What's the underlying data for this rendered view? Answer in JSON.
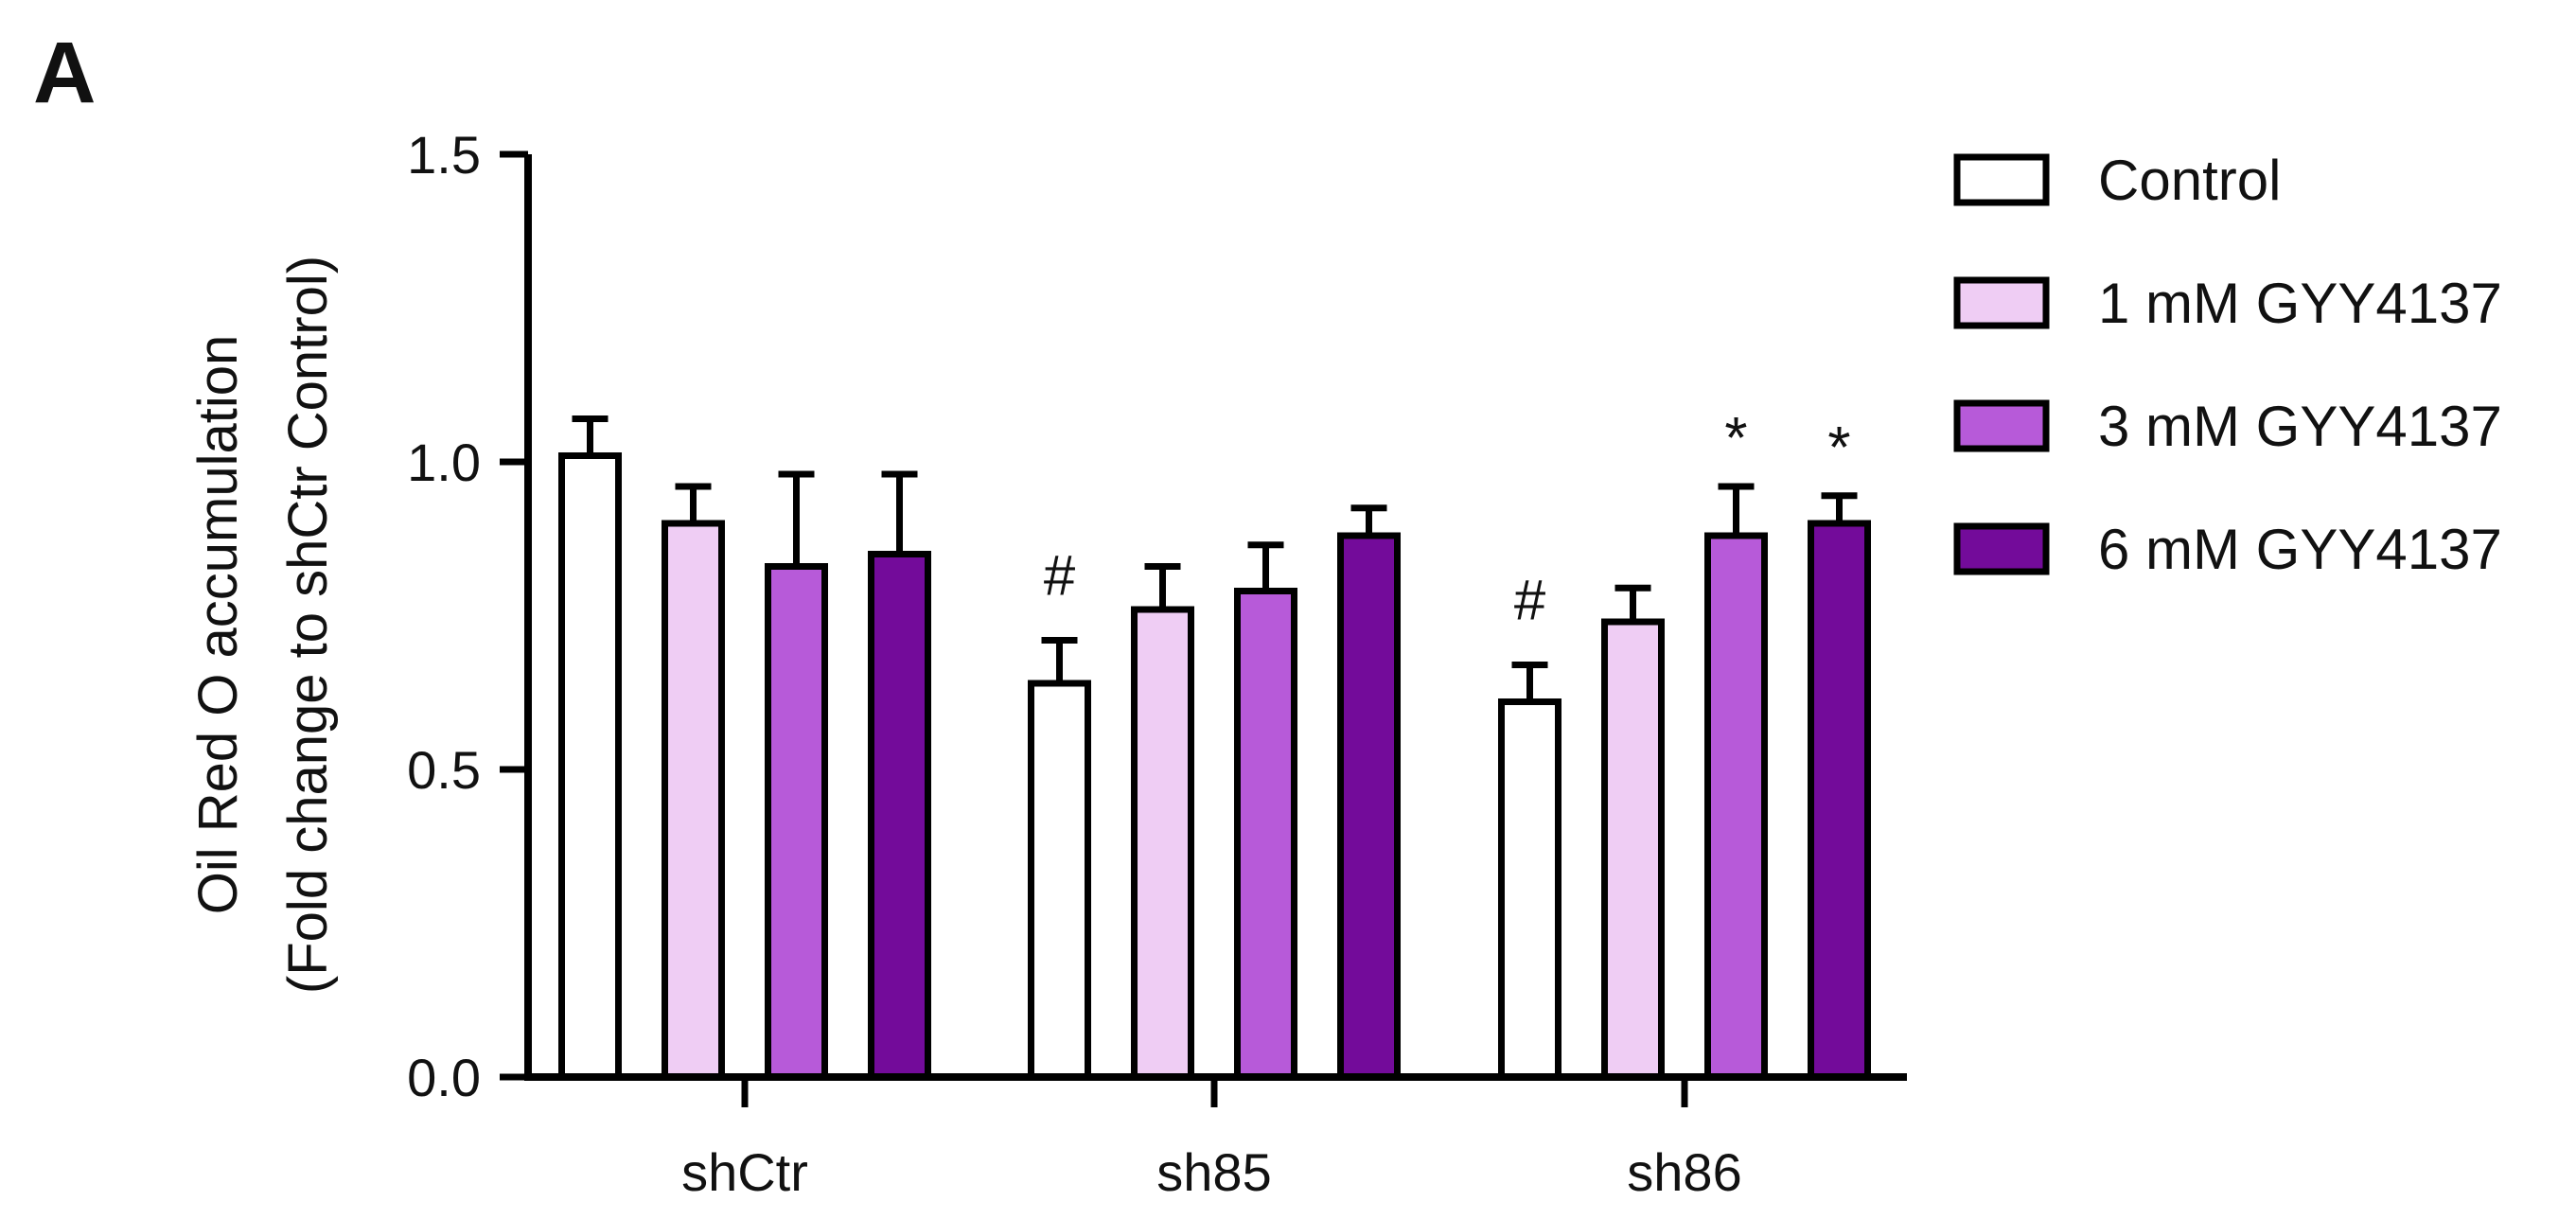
{
  "panel_label": "A",
  "chart_data": {
    "type": "bar",
    "title": "",
    "xlabel": "",
    "ylabel_line1": "Oil Red O accumulation",
    "ylabel_line2": "(Fold change to shCtr Control)",
    "ylim": [
      0,
      1.5
    ],
    "yticks": [
      0.0,
      0.5,
      1.0,
      1.5
    ],
    "ytick_labels": [
      "0.0",
      "0.5",
      "1.0",
      "1.5"
    ],
    "categories": [
      "shCtr",
      "sh85",
      "sh86"
    ],
    "legend_position": "top-right",
    "series": [
      {
        "name": "Control",
        "color": "#ffffff",
        "values": [
          1.01,
          0.64,
          0.61
        ],
        "errors": [
          0.06,
          0.07,
          0.06
        ],
        "annotations": [
          "",
          "#",
          "#"
        ]
      },
      {
        "name": "1 mM GYY4137",
        "color": "#efcdf4",
        "values": [
          0.9,
          0.76,
          0.74
        ],
        "errors": [
          0.06,
          0.07,
          0.055
        ],
        "annotations": [
          "",
          "",
          ""
        ]
      },
      {
        "name": "3 mM GYY4137",
        "color": "#b75ad9",
        "values": [
          0.83,
          0.79,
          0.88
        ],
        "errors": [
          0.15,
          0.075,
          0.08
        ],
        "annotations": [
          "",
          "",
          "*"
        ]
      },
      {
        "name": "6 mM GYY4137",
        "color": "#730b9a",
        "values": [
          0.85,
          0.88,
          0.9
        ],
        "errors": [
          0.13,
          0.045,
          0.045
        ],
        "annotations": [
          "",
          "",
          "*"
        ]
      }
    ]
  }
}
